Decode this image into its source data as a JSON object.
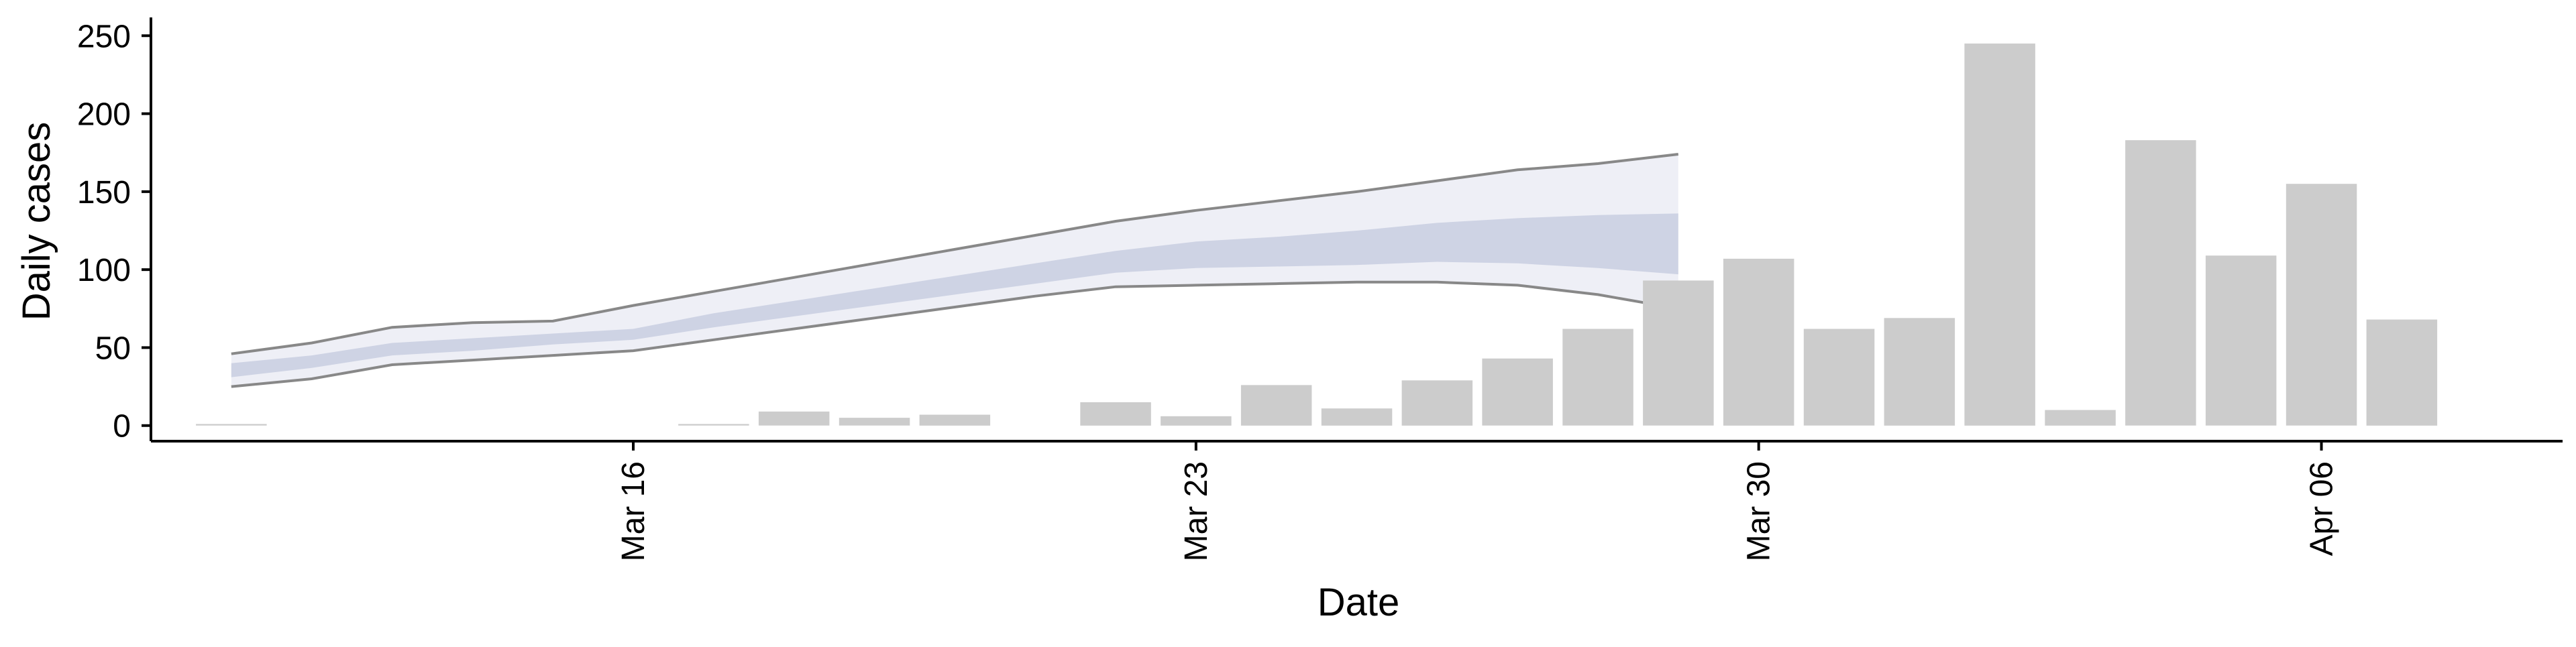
{
  "chart_data": {
    "type": "bar",
    "xlabel": "Date",
    "ylabel": "Daily cases",
    "ylim": [
      -10,
      260
    ],
    "yticks": [
      0,
      50,
      100,
      150,
      200,
      250
    ],
    "xlim": [
      "2020-03-10",
      "2020-04-09"
    ],
    "xticks": [
      {
        "date": "2020-03-16",
        "label": "Mar 16"
      },
      {
        "date": "2020-03-23",
        "label": "Mar 23"
      },
      {
        "date": "2020-03-30",
        "label": "Mar 30"
      },
      {
        "date": "2020-04-06",
        "label": "Apr 06"
      }
    ],
    "grid": false,
    "bar_color": "#cccccc",
    "bars": [
      {
        "date": "2020-03-11",
        "value": 1
      },
      {
        "date": "2020-03-17",
        "value": 1
      },
      {
        "date": "2020-03-18",
        "value": 9
      },
      {
        "date": "2020-03-19",
        "value": 5
      },
      {
        "date": "2020-03-20",
        "value": 7
      },
      {
        "date": "2020-03-22",
        "value": 15
      },
      {
        "date": "2020-03-23",
        "value": 6
      },
      {
        "date": "2020-03-24",
        "value": 26
      },
      {
        "date": "2020-03-25",
        "value": 11
      },
      {
        "date": "2020-03-26",
        "value": 29
      },
      {
        "date": "2020-03-27",
        "value": 43
      },
      {
        "date": "2020-03-28",
        "value": 62
      },
      {
        "date": "2020-03-29",
        "value": 93
      },
      {
        "date": "2020-03-30",
        "value": 107
      },
      {
        "date": "2020-03-31",
        "value": 62
      },
      {
        "date": "2020-04-01",
        "value": 69
      },
      {
        "date": "2020-04-02",
        "value": 245
      },
      {
        "date": "2020-04-03",
        "value": 10
      },
      {
        "date": "2020-04-04",
        "value": 183
      },
      {
        "date": "2020-04-05",
        "value": 109
      },
      {
        "date": "2020-04-06",
        "value": 155
      },
      {
        "date": "2020-04-07",
        "value": 68
      }
    ],
    "forecast": {
      "outer_color": "#e8eaf3",
      "inner_color": "#c5cce0",
      "line_color": "#888888",
      "points": [
        {
          "date": "2020-03-11",
          "lo": 25,
          "inner_lo": 31,
          "inner_hi": 40,
          "hi": 46
        },
        {
          "date": "2020-03-12",
          "lo": 30,
          "inner_lo": 37,
          "inner_hi": 45,
          "hi": 53
        },
        {
          "date": "2020-03-13",
          "lo": 39,
          "inner_lo": 45,
          "inner_hi": 53,
          "hi": 63
        },
        {
          "date": "2020-03-14",
          "lo": 42,
          "inner_lo": 48,
          "inner_hi": 56,
          "hi": 66
        },
        {
          "date": "2020-03-15",
          "lo": 45,
          "inner_lo": 52,
          "inner_hi": 59,
          "hi": 67
        },
        {
          "date": "2020-03-16",
          "lo": 48,
          "inner_lo": 55,
          "inner_hi": 62,
          "hi": 77
        },
        {
          "date": "2020-03-17",
          "lo": 55,
          "inner_lo": 63,
          "inner_hi": 72,
          "hi": 86
        },
        {
          "date": "2020-03-18",
          "lo": 62,
          "inner_lo": 70,
          "inner_hi": 80,
          "hi": 95
        },
        {
          "date": "2020-03-19",
          "lo": 69,
          "inner_lo": 77,
          "inner_hi": 88,
          "hi": 104
        },
        {
          "date": "2020-03-20",
          "lo": 76,
          "inner_lo": 84,
          "inner_hi": 96,
          "hi": 113
        },
        {
          "date": "2020-03-21",
          "lo": 83,
          "inner_lo": 91,
          "inner_hi": 104,
          "hi": 122
        },
        {
          "date": "2020-03-22",
          "lo": 89,
          "inner_lo": 98,
          "inner_hi": 112,
          "hi": 131
        },
        {
          "date": "2020-03-23",
          "lo": 90,
          "inner_lo": 101,
          "inner_hi": 118,
          "hi": 138
        },
        {
          "date": "2020-03-24",
          "lo": 91,
          "inner_lo": 102,
          "inner_hi": 121,
          "hi": 144
        },
        {
          "date": "2020-03-25",
          "lo": 92,
          "inner_lo": 103,
          "inner_hi": 125,
          "hi": 150
        },
        {
          "date": "2020-03-26",
          "lo": 92,
          "inner_lo": 105,
          "inner_hi": 130,
          "hi": 157
        },
        {
          "date": "2020-03-27",
          "lo": 90,
          "inner_lo": 104,
          "inner_hi": 133,
          "hi": 164
        },
        {
          "date": "2020-03-28",
          "lo": 84,
          "inner_lo": 101,
          "inner_hi": 135,
          "hi": 168
        },
        {
          "date": "2020-03-29",
          "lo": 75,
          "inner_lo": 97,
          "inner_hi": 136,
          "hi": 174
        }
      ]
    }
  }
}
